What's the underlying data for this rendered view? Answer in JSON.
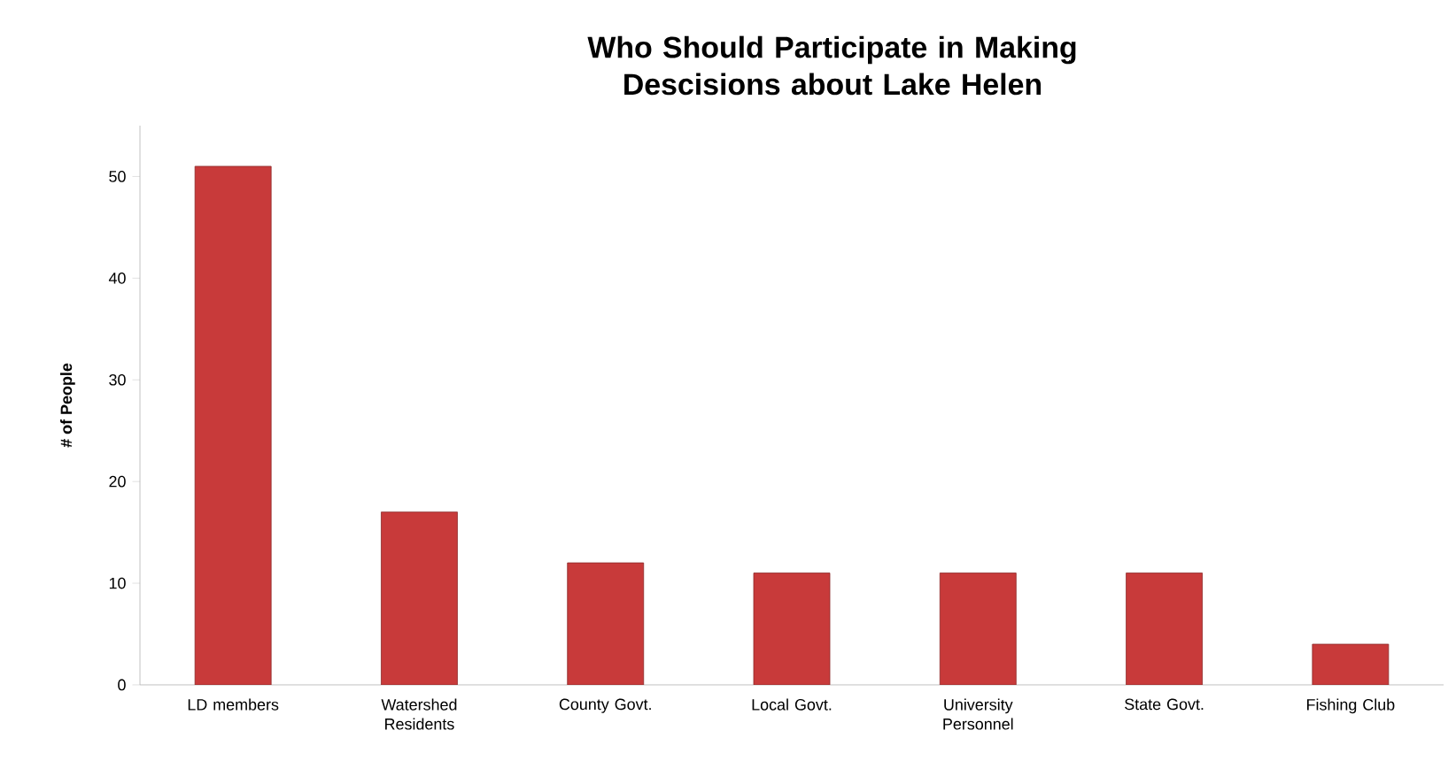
{
  "chart_data": {
    "type": "bar",
    "title": "Who Should Participate in Making Descisions about Lake Helen",
    "ylabel": "# of People",
    "categories": [
      "LD members",
      "Watershed Residents",
      "County Govt.",
      "Local Govt.",
      "University Personnel",
      "State Govt.",
      "Fishing Club"
    ],
    "values": [
      51,
      17,
      12,
      11,
      11,
      11,
      4
    ],
    "color": "#c83a3a",
    "ylim": [
      0,
      55
    ],
    "yticks": [
      0,
      10,
      20,
      30,
      40,
      50
    ],
    "grid": false
  }
}
